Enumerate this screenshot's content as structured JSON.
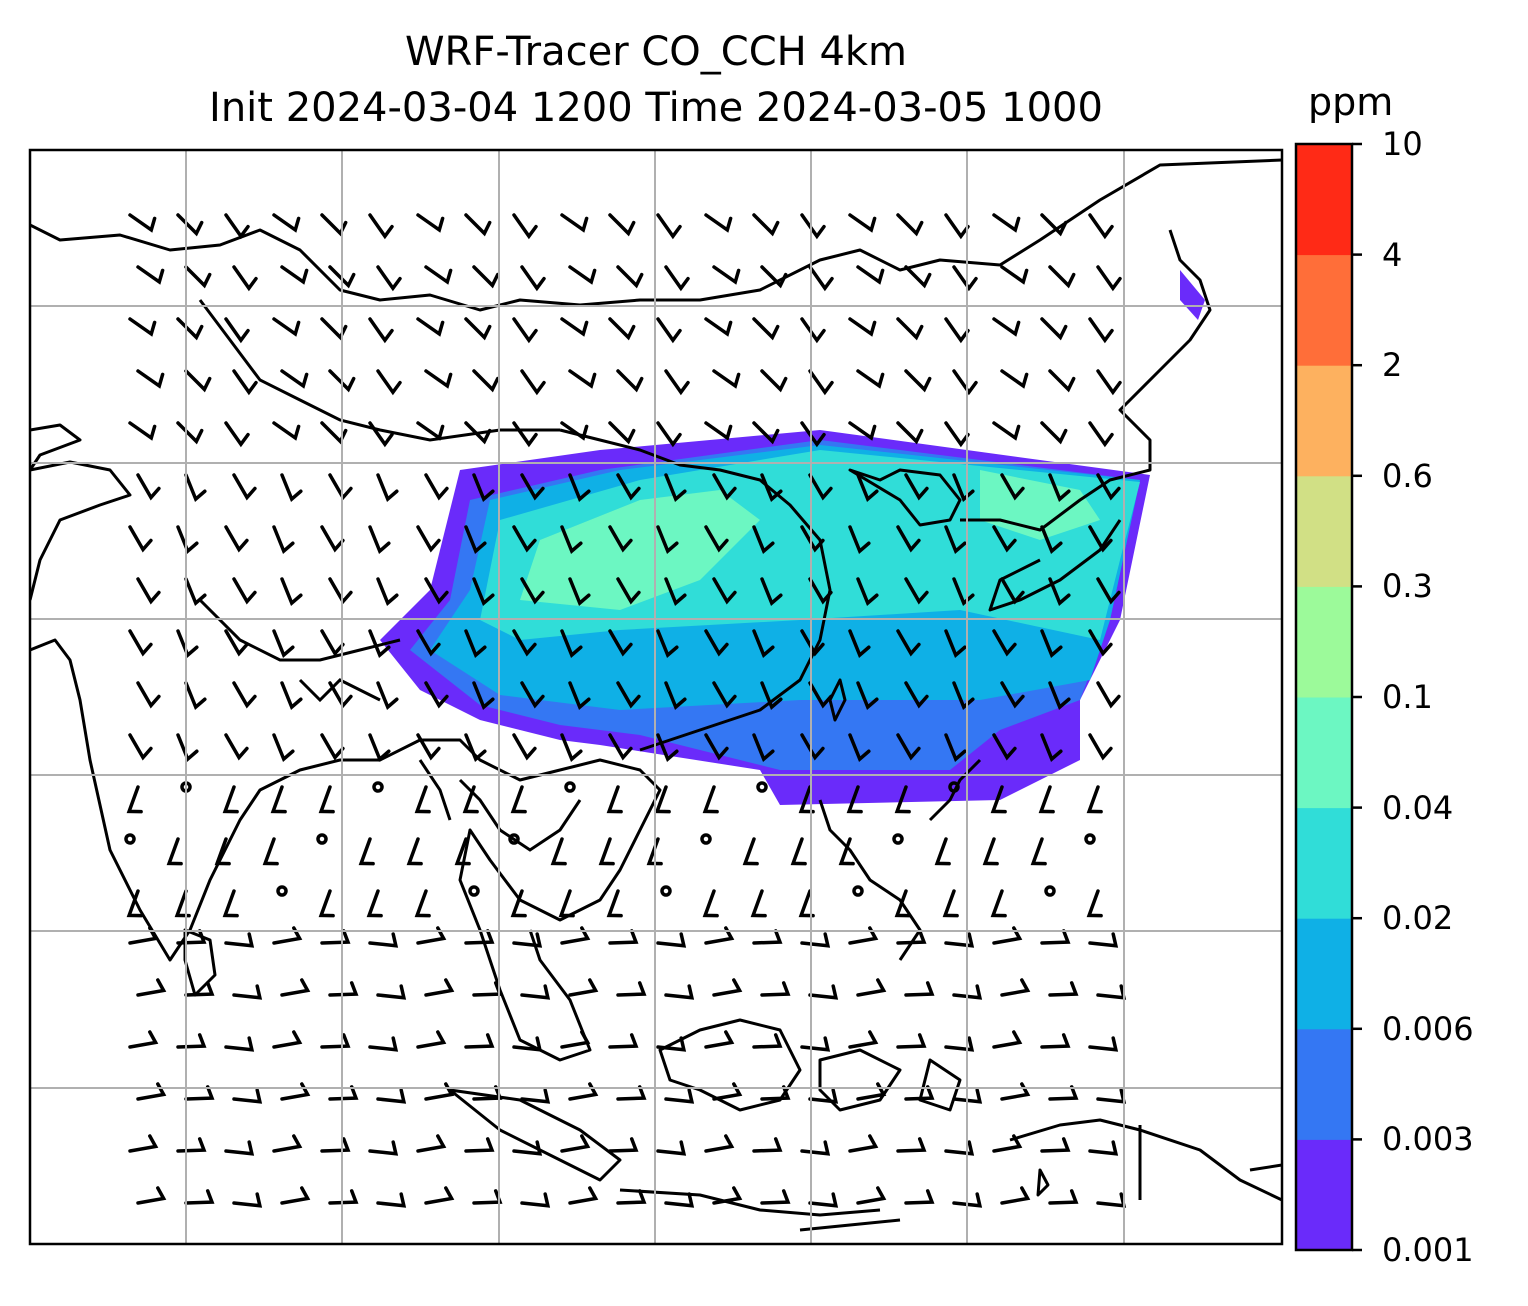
{
  "title": {
    "line1": "WRF-Tracer CO_CCH 4km",
    "line2": "Init 2024-03-04 1200 Time 2024-03-05 1000"
  },
  "colorbar": {
    "unit": "ppm",
    "levels": [
      "0.001",
      "0.003",
      "0.006",
      "0.02",
      "0.04",
      "0.1",
      "0.3",
      "0.6",
      "2",
      "4",
      "10"
    ],
    "colors": [
      "#6a2bfa",
      "#3477f3",
      "#0fb0e6",
      "#30ddd8",
      "#6cf7c2",
      "#9cfa9a",
      "#d1e085",
      "#fdb15f",
      "#ff6e39",
      "#ff2a16"
    ]
  },
  "map": {
    "projection_grid": "gray",
    "features": [
      "coastlines",
      "country-borders",
      "wind-barbs",
      "tracer-plume"
    ]
  }
}
